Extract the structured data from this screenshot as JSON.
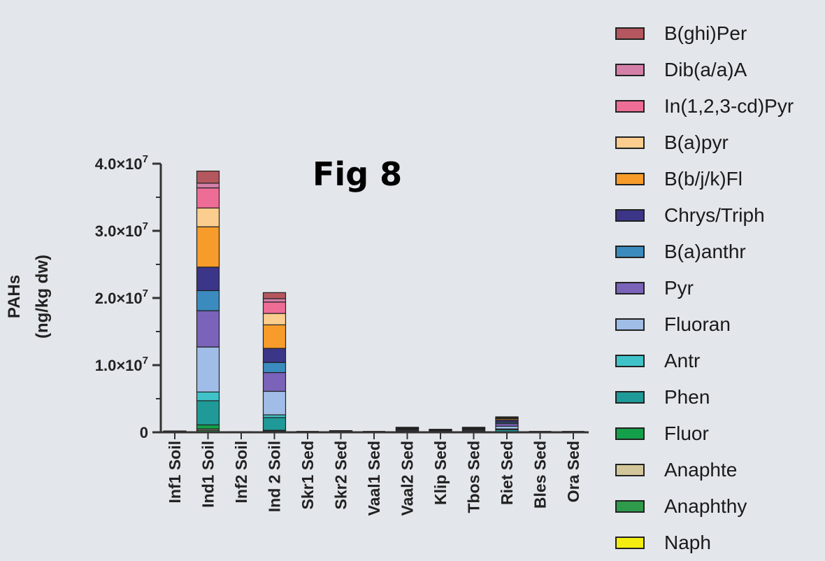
{
  "figure_label": "Fig 8",
  "colors": {
    "background": "#e3e6ea",
    "axis": "#333333"
  },
  "chart_data": {
    "type": "bar",
    "stacked": true,
    "title": "",
    "ylabel": [
      "PAHs",
      "(ng/kg dw)"
    ],
    "xlabel": "",
    "ylim": [
      0,
      40000000
    ],
    "y_ticks": [
      {
        "value": 0,
        "base": "0",
        "exp": ""
      },
      {
        "value": 10000000,
        "base": "1.0×10",
        "exp": "7"
      },
      {
        "value": 20000000,
        "base": "2.0×10",
        "exp": "7"
      },
      {
        "value": 30000000,
        "base": "3.0×10",
        "exp": "7"
      },
      {
        "value": 40000000,
        "base": "4.0×10",
        "exp": "7"
      }
    ],
    "categories": [
      "Inf1 Soil",
      "Ind1 Soil",
      "Inf2 Soil",
      "Ind 2 Soil",
      "Skr1 Sed",
      "Skr2 Sed",
      "Vaal1 Sed",
      "Vaal2 Sed",
      "Klip Sed",
      "Tbos Sed",
      "Riet Sed",
      "Bles Sed",
      "Ora Sed"
    ],
    "legend_position": "right",
    "series": [
      {
        "name": "Naph",
        "color": "#f4ee10",
        "values": [
          0,
          0,
          0,
          0,
          0,
          0,
          0,
          0,
          0,
          0,
          0,
          0,
          0
        ]
      },
      {
        "name": "Anaphthy",
        "color": "#2e9a4c",
        "values": [
          0,
          300000,
          0,
          100000,
          0,
          0,
          0,
          0,
          0,
          0,
          0,
          0,
          0
        ]
      },
      {
        "name": "Anaphte",
        "color": "#d3c69a",
        "values": [
          0,
          200000,
          0,
          100000,
          0,
          0,
          0,
          0,
          0,
          0,
          0,
          0,
          0
        ]
      },
      {
        "name": "Fluor",
        "color": "#14a04a",
        "values": [
          0,
          600000,
          0,
          100000,
          0,
          0,
          0,
          0,
          0,
          0,
          0,
          0,
          0
        ]
      },
      {
        "name": "Phen",
        "color": "#1f9a98",
        "values": [
          100000,
          3600000,
          50000,
          1900000,
          0,
          100000,
          0,
          200000,
          100000,
          200000,
          400000,
          0,
          0
        ]
      },
      {
        "name": "Antr",
        "color": "#3fc3c8",
        "values": [
          0,
          1300000,
          0,
          400000,
          0,
          0,
          0,
          0,
          0,
          0,
          100000,
          0,
          0
        ]
      },
      {
        "name": "Fluoran",
        "color": "#9fbde6",
        "values": [
          50000,
          6700000,
          50000,
          3500000,
          0,
          50000,
          0,
          150000,
          100000,
          150000,
          400000,
          0,
          0
        ]
      },
      {
        "name": "Pyr",
        "color": "#7a63b9",
        "values": [
          50000,
          5400000,
          0,
          2800000,
          0,
          50000,
          0,
          150000,
          100000,
          150000,
          400000,
          0,
          0
        ]
      },
      {
        "name": "B(a)anthr",
        "color": "#3b8bbf",
        "values": [
          0,
          3000000,
          0,
          1500000,
          0,
          0,
          0,
          50000,
          50000,
          50000,
          200000,
          0,
          0
        ]
      },
      {
        "name": "Chrys/Triph",
        "color": "#3c3689",
        "values": [
          0,
          3500000,
          0,
          2100000,
          0,
          50000,
          0,
          100000,
          50000,
          100000,
          300000,
          0,
          0
        ]
      },
      {
        "name": "B(b/j/k)Fl",
        "color": "#f79c2a",
        "values": [
          0,
          6000000,
          0,
          3500000,
          0,
          0,
          0,
          50000,
          50000,
          50000,
          200000,
          0,
          0
        ]
      },
      {
        "name": "B(a)pyr",
        "color": "#fbcd8e",
        "values": [
          0,
          2800000,
          0,
          1700000,
          0,
          0,
          0,
          50000,
          0,
          50000,
          100000,
          0,
          0
        ]
      },
      {
        "name": "In(1,2,3-cd)Pyr",
        "color": "#ee6d96",
        "values": [
          0,
          3000000,
          0,
          1700000,
          0,
          0,
          0,
          0,
          0,
          0,
          100000,
          0,
          0
        ]
      },
      {
        "name": "Dib(a/a)A",
        "color": "#d47fa8",
        "values": [
          0,
          700000,
          0,
          500000,
          0,
          0,
          0,
          0,
          0,
          0,
          0,
          0,
          0
        ]
      },
      {
        "name": "B(ghi)Per",
        "color": "#b4575e",
        "values": [
          0,
          1800000,
          0,
          900000,
          0,
          0,
          0,
          0,
          0,
          0,
          100000,
          0,
          0
        ]
      }
    ]
  }
}
